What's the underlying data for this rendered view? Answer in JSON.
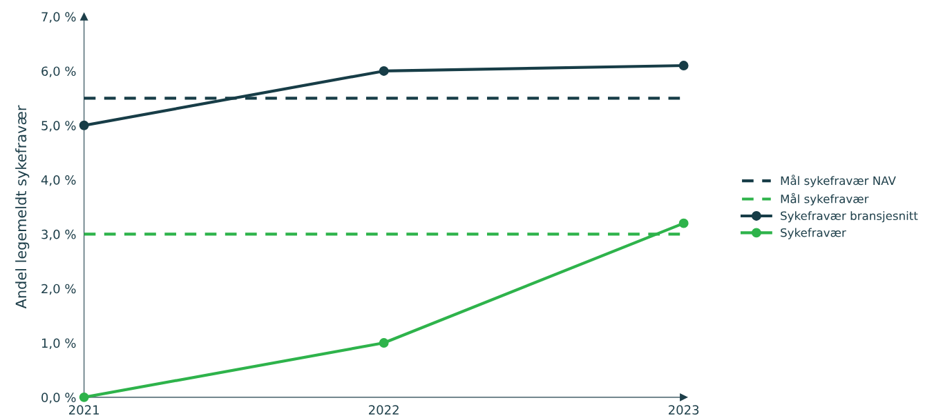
{
  "chart_data": {
    "type": "line",
    "ylabel": "Andel legemeldt sykefravær",
    "x": [
      2021,
      2022,
      2023
    ],
    "xlim": [
      2021,
      2023
    ],
    "xticks": [
      2021,
      2022,
      2023
    ],
    "ylim": [
      0,
      7
    ],
    "yticks": [
      {
        "value": 0,
        "label": "0,0 %"
      },
      {
        "value": 1,
        "label": "1,0 %"
      },
      {
        "value": 2,
        "label": "2,0 %"
      },
      {
        "value": 3,
        "label": "3,0 %"
      },
      {
        "value": 4,
        "label": "4,0 %"
      },
      {
        "value": 5,
        "label": "5,0 %"
      },
      {
        "value": 6,
        "label": "6,0 %"
      },
      {
        "value": 7,
        "label": "7,0 %"
      }
    ],
    "grid": false,
    "legend": "right",
    "series": [
      {
        "name": "Mål sykefravær NAV",
        "color": "#173d47",
        "values": [
          5.5,
          5.5,
          5.5
        ],
        "line_style": "dashed",
        "marker": "none"
      },
      {
        "name": "Mål sykefravær",
        "color": "#2eb34b",
        "values": [
          3.0,
          3.0,
          3.0
        ],
        "line_style": "dashed",
        "marker": "none"
      },
      {
        "name": "Sykefravær bransjesnitt",
        "color": "#173d47",
        "values": [
          5.0,
          6.0,
          6.1
        ],
        "line_style": "solid",
        "marker": "circle"
      },
      {
        "name": "Sykefravær",
        "color": "#2eb34b",
        "values": [
          0.0,
          1.0,
          3.2
        ],
        "line_style": "solid",
        "marker": "circle"
      }
    ]
  }
}
